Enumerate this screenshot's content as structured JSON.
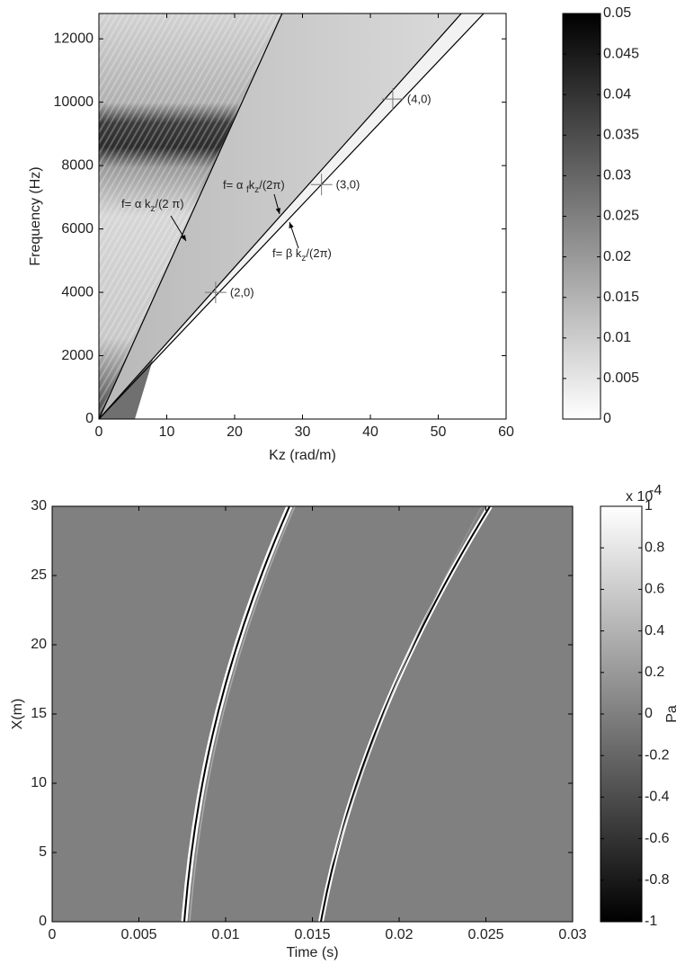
{
  "chart_data": [
    {
      "type": "heatmap",
      "xlabel": "Kz (rad/m)",
      "ylabel": "Frequency (Hz)",
      "xlim": [
        0,
        60
      ],
      "xticks": [
        0,
        10,
        20,
        30,
        40,
        50,
        60
      ],
      "ylim": [
        0,
        12800
      ],
      "yticks": [
        0,
        2000,
        4000,
        6000,
        8000,
        10000,
        12000
      ],
      "colorbar": {
        "lim": [
          0,
          0.05
        ],
        "ticks": [
          0,
          0.005,
          0.01,
          0.015,
          0.02,
          0.025,
          0.03,
          0.035,
          0.04,
          0.045,
          0.05
        ],
        "colors": [
          "#ffffff",
          "#000000"
        ]
      },
      "series": [
        {
          "color": "#000000",
          "x": [
            0,
            27
          ],
          "values": [
            0,
            12800
          ]
        },
        {
          "color": "#000000",
          "x": [
            0,
            53.4
          ],
          "values": [
            0,
            12800
          ]
        },
        {
          "color": "#000000",
          "x": [
            0,
            56.7
          ],
          "values": [
            0,
            12800
          ]
        }
      ],
      "points": [
        {
          "label": "(2,0)",
          "x": 17.2,
          "y": 4000
        },
        {
          "label": "(3,0)",
          "x": 32.8,
          "y": 7400
        },
        {
          "label": "(4,0)",
          "x": 43.3,
          "y": 10100
        }
      ],
      "annotations": [
        {
          "parts": [
            "f= α k",
            "z",
            "/(2 π)"
          ]
        },
        {
          "parts": [
            "f= α ",
            "f",
            "k",
            "z",
            "/(2π)"
          ]
        },
        {
          "parts": [
            "f= β k",
            "z",
            "/(2π)"
          ]
        }
      ]
    },
    {
      "type": "heatmap",
      "xlabel": "Time (s)",
      "ylabel": "X(m)",
      "xlim": [
        0,
        0.03
      ],
      "xticks": [
        0,
        0.005,
        0.01,
        0.015,
        0.02,
        0.025,
        0.03
      ],
      "ylim": [
        0,
        30
      ],
      "yticks": [
        0,
        5,
        10,
        15,
        20,
        25,
        30
      ],
      "colorbar": {
        "lim": [
          -1,
          1
        ],
        "ticks": [
          -1,
          -0.8,
          -0.6,
          -0.4,
          -0.2,
          0,
          0.2,
          0.4,
          0.6,
          0.8,
          1
        ],
        "colors": [
          "#000000",
          "#ffffff"
        ],
        "label": "Pa",
        "scale_base": "x 10",
        "scale_exp": "-4"
      }
    }
  ]
}
